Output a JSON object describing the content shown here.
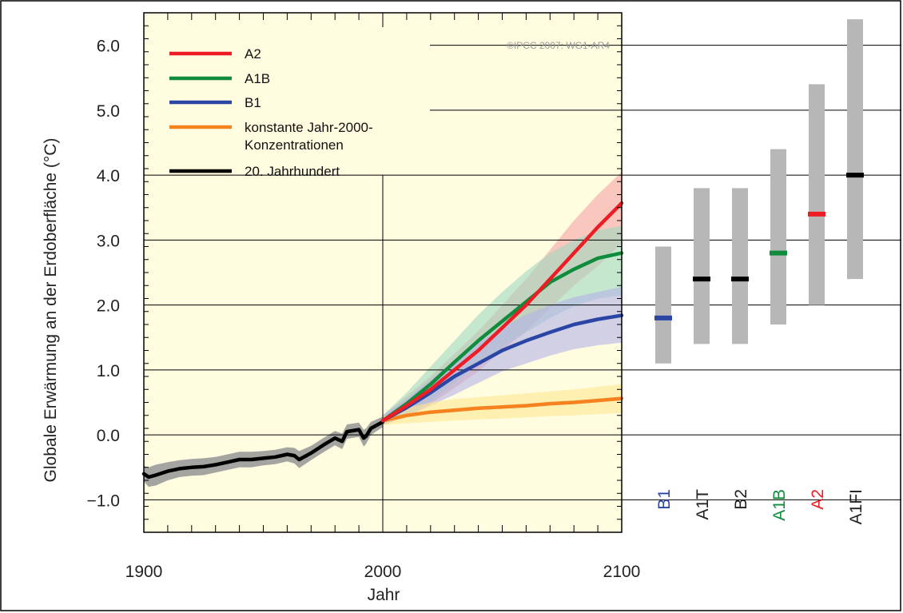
{
  "chart_data": {
    "type": "line",
    "xlabel": "Jahr",
    "ylabel": "Globale Erwärmung an der Erdoberfläche (°C)",
    "xlim": [
      1900,
      2100
    ],
    "ylim": [
      -1.5,
      6.5
    ],
    "x_ticks": [
      "1900",
      "2000",
      "2100"
    ],
    "y_ticks": [
      "6.0",
      "5.0",
      "4.0",
      "3.0",
      "2.0",
      "1.0",
      "0.0",
      "−1.0"
    ],
    "y_tick_values": [
      6,
      5,
      4,
      3,
      2,
      1,
      0,
      -1
    ],
    "credit": "©IPCC  2007: WG1-AR4",
    "grid": "horizontal at each whole degree",
    "legend_position": "top-left",
    "legend": [
      {
        "label": "A2",
        "color": "#ee1c24"
      },
      {
        "label": "A1B",
        "color": "#0f8c3c"
      },
      {
        "label": "B1",
        "color": "#2a45a4"
      },
      {
        "label": "konstante Jahr-2000-",
        "label2": "Konzentrationen",
        "color": "#f5821f"
      },
      {
        "label": "20. Jahrhundert",
        "color": "#000000"
      }
    ],
    "series": [
      {
        "name": "20. Jahrhundert",
        "color": "#000000",
        "band_color": "#9a9a9a",
        "x": [
          1900,
          1902,
          1905,
          1910,
          1915,
          1920,
          1925,
          1930,
          1935,
          1940,
          1945,
          1950,
          1955,
          1960,
          1963,
          1965,
          1970,
          1975,
          1980,
          1983,
          1985,
          1990,
          1992,
          1993,
          1995,
          2000
        ],
        "y": [
          -0.6,
          -0.65,
          -0.62,
          -0.56,
          -0.52,
          -0.5,
          -0.49,
          -0.46,
          -0.42,
          -0.38,
          -0.38,
          -0.36,
          -0.34,
          -0.3,
          -0.32,
          -0.38,
          -0.28,
          -0.16,
          -0.05,
          -0.1,
          0.05,
          0.08,
          -0.05,
          -0.02,
          0.1,
          0.2
        ],
        "band": [
          0.12,
          0.15,
          0.16,
          0.14,
          0.13,
          0.13,
          0.13,
          0.12,
          0.12,
          0.12,
          0.12,
          0.11,
          0.11,
          0.11,
          0.12,
          0.13,
          0.11,
          0.11,
          0.11,
          0.12,
          0.11,
          0.11,
          0.13,
          0.12,
          0.1,
          0.08
        ]
      },
      {
        "name": "A2",
        "color": "#ee1c24",
        "band_color": "#f5a3a5",
        "x": [
          2000,
          2010,
          2020,
          2030,
          2040,
          2050,
          2060,
          2070,
          2080,
          2090,
          2100
        ],
        "y": [
          0.22,
          0.45,
          0.7,
          1.0,
          1.3,
          1.65,
          2.0,
          2.4,
          2.8,
          3.2,
          3.57
        ],
        "band_lo": [
          0.15,
          0.28,
          0.48,
          0.72,
          0.98,
          1.3,
          1.6,
          1.95,
          2.3,
          2.6,
          2.95
        ],
        "band_hi": [
          0.3,
          0.6,
          0.9,
          1.25,
          1.6,
          2.0,
          2.4,
          2.85,
          3.3,
          3.7,
          4.05
        ]
      },
      {
        "name": "A1B",
        "color": "#0f8c3c",
        "band_color": "#9fd8bf",
        "x": [
          2000,
          2010,
          2020,
          2030,
          2040,
          2050,
          2060,
          2070,
          2080,
          2090,
          2100
        ],
        "y": [
          0.22,
          0.48,
          0.78,
          1.12,
          1.45,
          1.75,
          2.05,
          2.35,
          2.55,
          2.72,
          2.8
        ],
        "band_lo": [
          0.15,
          0.3,
          0.52,
          0.8,
          1.08,
          1.35,
          1.58,
          1.8,
          1.98,
          2.1,
          2.15
        ],
        "band_hi": [
          0.3,
          0.65,
          1.05,
          1.45,
          1.85,
          2.2,
          2.52,
          2.8,
          3.0,
          3.15,
          3.22
        ]
      },
      {
        "name": "B1",
        "color": "#2a45a4",
        "band_color": "#b3b3e6",
        "x": [
          2000,
          2010,
          2020,
          2030,
          2040,
          2050,
          2060,
          2070,
          2080,
          2090,
          2100
        ],
        "y": [
          0.22,
          0.42,
          0.65,
          0.9,
          1.1,
          1.3,
          1.45,
          1.58,
          1.7,
          1.78,
          1.84
        ],
        "band_lo": [
          0.15,
          0.28,
          0.45,
          0.62,
          0.8,
          0.98,
          1.1,
          1.22,
          1.32,
          1.38,
          1.42
        ],
        "band_hi": [
          0.3,
          0.55,
          0.85,
          1.15,
          1.42,
          1.65,
          1.85,
          2.0,
          2.12,
          2.2,
          2.28
        ]
      },
      {
        "name": "konstante Jahr-2000-Konzentrationen",
        "color": "#f5821f",
        "band_color": "#fde88f",
        "x": [
          2000,
          2010,
          2020,
          2030,
          2040,
          2050,
          2060,
          2070,
          2080,
          2090,
          2100
        ],
        "y": [
          0.22,
          0.3,
          0.35,
          0.38,
          0.41,
          0.43,
          0.45,
          0.48,
          0.5,
          0.53,
          0.56
        ],
        "band_lo": [
          0.15,
          0.18,
          0.2,
          0.22,
          0.24,
          0.25,
          0.27,
          0.29,
          0.3,
          0.32,
          0.34
        ],
        "band_hi": [
          0.28,
          0.42,
          0.5,
          0.55,
          0.58,
          0.61,
          0.64,
          0.67,
          0.7,
          0.74,
          0.78
        ]
      }
    ],
    "scenario_ranges_2100": [
      {
        "label": "B1",
        "label_color": "#2a45a4",
        "low": 1.1,
        "high": 2.9,
        "best": 1.8,
        "best_color": "#2a45a4"
      },
      {
        "label": "A1T",
        "label_color": "#222222",
        "low": 1.4,
        "high": 3.8,
        "best": 2.4,
        "best_color": "#000000"
      },
      {
        "label": "B2",
        "label_color": "#222222",
        "low": 1.4,
        "high": 3.8,
        "best": 2.4,
        "best_color": "#000000"
      },
      {
        "label": "A1B",
        "label_color": "#0f8c3c",
        "low": 1.7,
        "high": 4.4,
        "best": 2.8,
        "best_color": "#0f8c3c"
      },
      {
        "label": "A2",
        "label_color": "#ee1c24",
        "low": 2.0,
        "high": 5.4,
        "best": 3.4,
        "best_color": "#ee1c24"
      },
      {
        "label": "A1FI",
        "label_color": "#222222",
        "low": 2.4,
        "high": 6.4,
        "best": 4.0,
        "best_color": "#000000"
      }
    ]
  }
}
